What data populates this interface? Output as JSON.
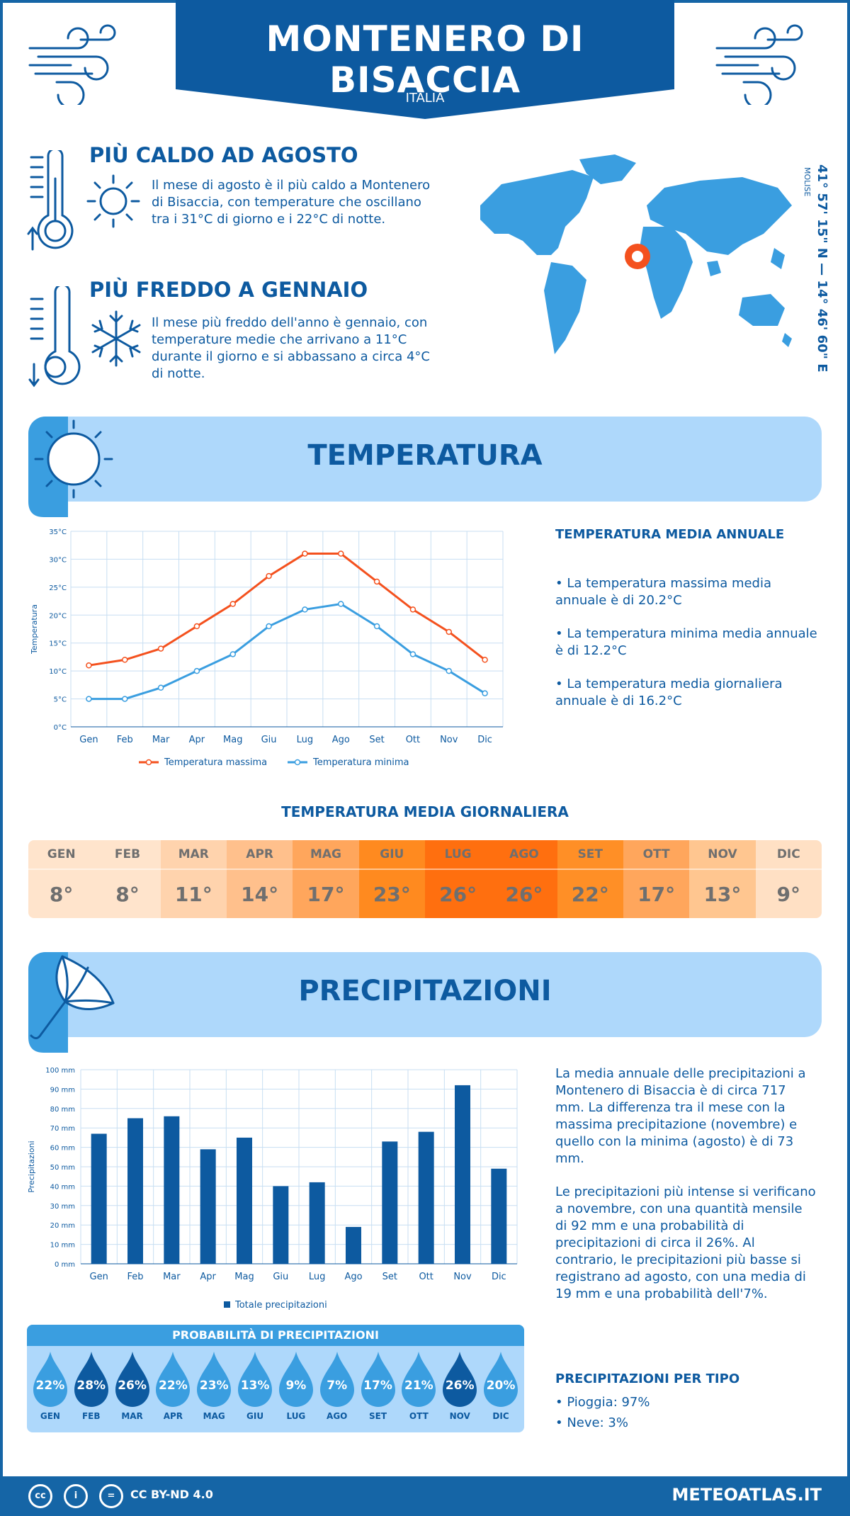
{
  "header": {
    "title": "MONTENERO DI BISACCIA",
    "subtitle": "ITALIA"
  },
  "facts": {
    "hottest": {
      "title": "PIÙ CALDO AD AGOSTO",
      "body": "Il mese di agosto è il più caldo a Montenero di Bisaccia, con temperature che oscillano tra i 31°C di giorno e i 22°C di notte."
    },
    "coldest": {
      "title": "PIÙ FREDDO A GENNAIO",
      "body": "Il mese più freddo dell'anno è gennaio, con temperature medie che arrivano a 11°C durante il giorno e si abbassano a circa 4°C di notte."
    }
  },
  "location": {
    "coordinates": "41° 57' 15\" N — 14° 46' 60\" E",
    "region": "MOLISE"
  },
  "temperature_section": {
    "title": "TEMPERATURA",
    "annual_heading": "TEMPERATURA MEDIA ANNUALE",
    "annual_points": [
      "• La temperatura massima media annuale è di 20.2°C",
      "• La temperatura minima media annuale è di 12.2°C",
      "• La temperatura media giornaliera annuale è di 16.2°C"
    ],
    "daily_heading": "TEMPERATURA MEDIA GIORNALIERA"
  },
  "monthly_temps": [
    {
      "month": "GEN",
      "value": "8°",
      "color": "#ffe4cc"
    },
    {
      "month": "FEB",
      "value": "8°",
      "color": "#ffe4cc"
    },
    {
      "month": "MAR",
      "value": "11°",
      "color": "#ffd3ad"
    },
    {
      "month": "APR",
      "value": "14°",
      "color": "#ffc08c"
    },
    {
      "month": "MAG",
      "value": "17°",
      "color": "#ffa65c"
    },
    {
      "month": "GIU",
      "value": "23°",
      "color": "#ff8a1f"
    },
    {
      "month": "LUG",
      "value": "26°",
      "color": "#ff6f0f"
    },
    {
      "month": "AGO",
      "value": "26°",
      "color": "#ff6f0f"
    },
    {
      "month": "SET",
      "value": "22°",
      "color": "#ff8f26"
    },
    {
      "month": "OTT",
      "value": "17°",
      "color": "#ffa65c"
    },
    {
      "month": "NOV",
      "value": "13°",
      "color": "#ffc690"
    },
    {
      "month": "DIC",
      "value": "9°",
      "color": "#ffe0c4"
    }
  ],
  "precip_section": {
    "title": "PRECIPITAZIONI",
    "paragraph1": "La media annuale delle precipitazioni a Montenero di Bisaccia è di circa 717 mm. La differenza tra il mese con la massima precipitazione (novembre) e quello con la minima (agosto) è di 73 mm.",
    "paragraph2": "Le precipitazioni più intense si verificano a novembre, con una quantità mensile di 92 mm e una probabilità di precipitazioni di circa il 26%. Al contrario, le precipitazioni più basse si registrano ad agosto, con una media di 19 mm e una probabilità dell'7%.",
    "type_heading": "PRECIPITAZIONI PER TIPO",
    "types": [
      "• Pioggia: 97%",
      "• Neve: 3%"
    ],
    "probability_heading": "PROBABILITÀ DI PRECIPITAZIONI"
  },
  "precip_probability": [
    {
      "month": "GEN",
      "value": "22%",
      "color": "#3a9ee0"
    },
    {
      "month": "FEB",
      "value": "28%",
      "color": "#0d5aa0"
    },
    {
      "month": "MAR",
      "value": "26%",
      "color": "#0d5aa0"
    },
    {
      "month": "APR",
      "value": "22%",
      "color": "#3a9ee0"
    },
    {
      "month": "MAG",
      "value": "23%",
      "color": "#3a9ee0"
    },
    {
      "month": "GIU",
      "value": "13%",
      "color": "#3a9ee0"
    },
    {
      "month": "LUG",
      "value": "9%",
      "color": "#3a9ee0"
    },
    {
      "month": "AGO",
      "value": "7%",
      "color": "#3a9ee0"
    },
    {
      "month": "SET",
      "value": "17%",
      "color": "#3a9ee0"
    },
    {
      "month": "OTT",
      "value": "21%",
      "color": "#3a9ee0"
    },
    {
      "month": "NOV",
      "value": "26%",
      "color": "#0d5aa0"
    },
    {
      "month": "DIC",
      "value": "20%",
      "color": "#3a9ee0"
    }
  ],
  "footer": {
    "license": "CC BY-ND 4.0",
    "site": "METEOATLAS.IT",
    "cc_icons": [
      "cc",
      "i",
      "="
    ]
  },
  "chart_data": [
    {
      "type": "line",
      "categories": [
        "Gen",
        "Feb",
        "Mar",
        "Apr",
        "Mag",
        "Giu",
        "Lug",
        "Ago",
        "Set",
        "Ott",
        "Nov",
        "Dic"
      ],
      "series": [
        {
          "name": "Temperatura massima",
          "values": [
            11,
            12,
            14,
            18,
            22,
            27,
            31,
            31,
            26,
            21,
            17,
            12
          ],
          "color": "#f4511e"
        },
        {
          "name": "Temperatura minima",
          "values": [
            5,
            5,
            7,
            10,
            13,
            18,
            21,
            22,
            18,
            13,
            10,
            6
          ],
          "color": "#3a9ee0"
        }
      ],
      "ylabel": "Temperatura",
      "ylim": [
        0,
        35
      ],
      "yticks": [
        "0°C",
        "5°C",
        "10°C",
        "15°C",
        "20°C",
        "25°C",
        "30°C",
        "35°C"
      ],
      "grid": true,
      "legend": "bottom"
    },
    {
      "type": "bar",
      "categories": [
        "Gen",
        "Feb",
        "Mar",
        "Apr",
        "Mag",
        "Giu",
        "Lug",
        "Ago",
        "Set",
        "Ott",
        "Nov",
        "Dic"
      ],
      "series": [
        {
          "name": "Totale precipitazioni",
          "values": [
            67,
            75,
            76,
            59,
            65,
            40,
            42,
            19,
            63,
            68,
            92,
            49
          ],
          "color": "#0d5aa0"
        }
      ],
      "ylabel": "Precipitazioni",
      "ylim": [
        0,
        100
      ],
      "yticks": [
        "0 mm",
        "10 mm",
        "20 mm",
        "30 mm",
        "40 mm",
        "50 mm",
        "60 mm",
        "70 mm",
        "80 mm",
        "90 mm",
        "100 mm"
      ],
      "grid": true,
      "legend": "bottom"
    }
  ]
}
